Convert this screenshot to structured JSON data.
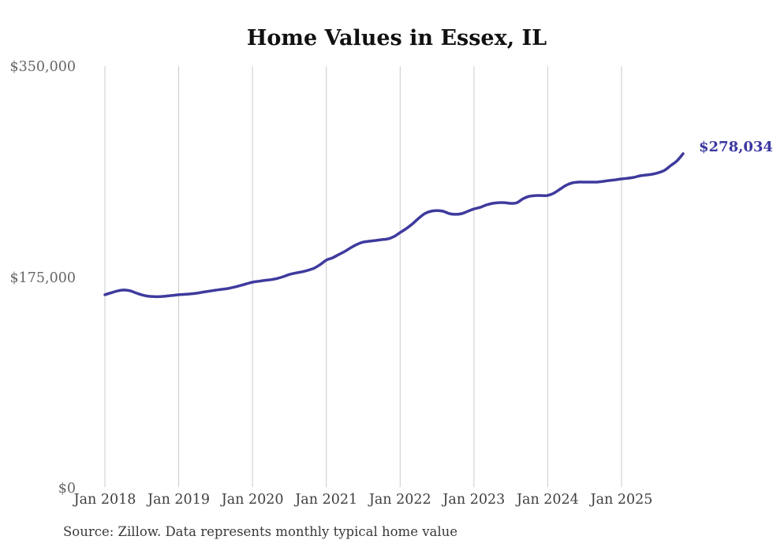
{
  "title": "Home Values in Essex, IL",
  "end_label": "$278,034",
  "source_note": "Source: Zillow. Data represents monthly typical home value",
  "y_axis": {
    "ticks": [
      "$350,000",
      "$175,000",
      "$0"
    ]
  },
  "x_axis": {
    "ticks": [
      "Jan 2018",
      "Jan 2019",
      "Jan 2020",
      "Jan 2021",
      "Jan 2022",
      "Jan 2023",
      "Jan 2024",
      "Jan 2025"
    ]
  },
  "colors": {
    "line": "#3e3a9d",
    "annotation": "#3a36a0",
    "grid": "#cbcbcb",
    "title": "#111111",
    "y_tick": "#666666",
    "x_tick": "#3f3f3f",
    "source": "#393939",
    "background": "#ffffff"
  },
  "chart_data": {
    "type": "line",
    "title": "Home Values in Essex, IL",
    "ylabel": "",
    "xlabel": "",
    "ylim": [
      0,
      350000
    ],
    "y_tick_values": [
      350000,
      175000,
      0
    ],
    "x_tick_labels": [
      "Jan 2018",
      "Jan 2019",
      "Jan 2020",
      "Jan 2021",
      "Jan 2022",
      "Jan 2023",
      "Jan 2024",
      "Jan 2025"
    ],
    "grid": "vertical-only",
    "legend": "none",
    "last_point_label": "$278,034",
    "last_value": 278034,
    "x": [
      "Jan 2018",
      "Feb 2018",
      "Mar 2018",
      "Apr 2018",
      "May 2018",
      "Jun 2018",
      "Jul 2018",
      "Aug 2018",
      "Sep 2018",
      "Oct 2018",
      "Nov 2018",
      "Dec 2018",
      "Jan 2019",
      "Feb 2019",
      "Mar 2019",
      "Apr 2019",
      "May 2019",
      "Jun 2019",
      "Jul 2019",
      "Aug 2019",
      "Sep 2019",
      "Oct 2019",
      "Nov 2019",
      "Dec 2019",
      "Jan 2020",
      "Feb 2020",
      "Mar 2020",
      "Apr 2020",
      "May 2020",
      "Jun 2020",
      "Jul 2020",
      "Aug 2020",
      "Sep 2020",
      "Oct 2020",
      "Nov 2020",
      "Dec 2020",
      "Jan 2021",
      "Feb 2021",
      "Mar 2021",
      "Apr 2021",
      "May 2021",
      "Jun 2021",
      "Jul 2021",
      "Aug 2021",
      "Sep 2021",
      "Oct 2021",
      "Nov 2021",
      "Dec 2021",
      "Jan 2022",
      "Feb 2022",
      "Mar 2022",
      "Apr 2022",
      "May 2022",
      "Jun 2022",
      "Jul 2022",
      "Aug 2022",
      "Sep 2022",
      "Oct 2022",
      "Nov 2022",
      "Dec 2022",
      "Jan 2023",
      "Feb 2023",
      "Mar 2023",
      "Apr 2023",
      "May 2023",
      "Jun 2023",
      "Jul 2023",
      "Aug 2023",
      "Sep 2023",
      "Oct 2023",
      "Nov 2023",
      "Dec 2023",
      "Jan 2024",
      "Feb 2024",
      "Mar 2024",
      "Apr 2024",
      "May 2024",
      "Jun 2024",
      "Jul 2024",
      "Aug 2024",
      "Sep 2024",
      "Oct 2024",
      "Nov 2024",
      "Dec 2024",
      "Jan 2025",
      "Feb 2025",
      "Mar 2025",
      "Apr 2025",
      "May 2025",
      "Jun 2025",
      "Jul 2025",
      "Aug 2025",
      "Sep 2025",
      "Oct 2025",
      "Nov 2025"
    ],
    "values": [
      161000,
      162600,
      164100,
      164900,
      164400,
      162600,
      160900,
      159800,
      159400,
      159500,
      159900,
      160400,
      161000,
      161300,
      161700,
      162300,
      163200,
      164000,
      164800,
      165500,
      166200,
      167300,
      168600,
      170000,
      171400,
      172200,
      172900,
      173500,
      174500,
      176000,
      177800,
      179000,
      180000,
      181300,
      183000,
      186000,
      189700,
      191600,
      194300,
      196900,
      200100,
      202800,
      204700,
      205400,
      206000,
      206700,
      207300,
      209300,
      212600,
      215900,
      219800,
      224400,
      228300,
      230300,
      230900,
      230300,
      228300,
      227700,
      228300,
      230300,
      232200,
      233500,
      235500,
      236800,
      237400,
      237400,
      236800,
      237400,
      240700,
      242700,
      243300,
      243300,
      243400,
      245300,
      248600,
      251900,
      253800,
      254500,
      254500,
      254500,
      254500,
      255100,
      255800,
      256400,
      257100,
      257700,
      258400,
      259700,
      260400,
      261000,
      262300,
      264300,
      268200,
      272100,
      278034
    ]
  }
}
